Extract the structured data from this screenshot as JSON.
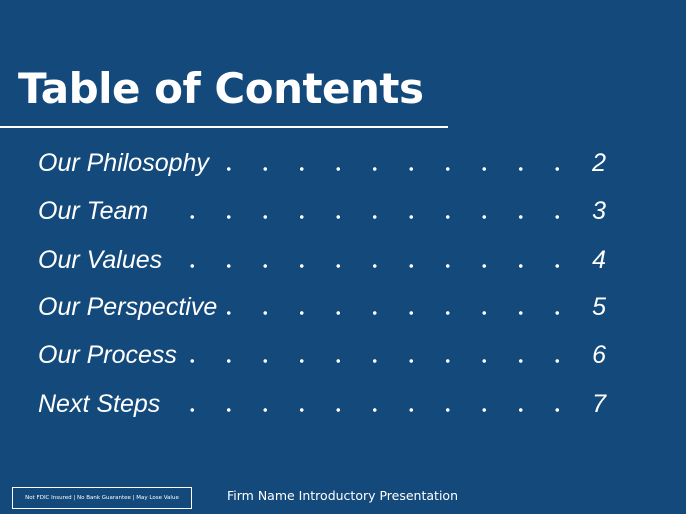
{
  "title": "Table of Contents",
  "entries": [
    {
      "label": "Our Philosophy",
      "page": 2
    },
    {
      "label": "Our Team",
      "page": 3
    },
    {
      "label": "Our Values",
      "page": 4
    },
    {
      "label": "Our Perspective",
      "page": 5
    },
    {
      "label": "Our Process",
      "page": 6
    },
    {
      "label": "Next Steps",
      "page": 7
    }
  ],
  "footer": {
    "disclaimer": "Not FDIC Insured | No Bank Guarantee | May Lose Value",
    "name": "Firm Name Introductory Presentation"
  }
}
